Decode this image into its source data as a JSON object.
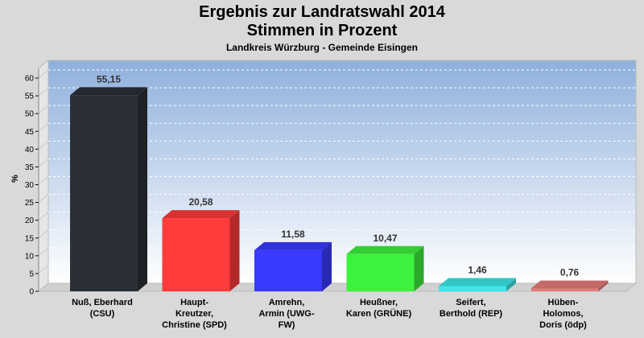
{
  "chart_data": {
    "type": "bar",
    "title_line1": "Ergebnis zur Landratswahl 2014",
    "title_line2": "Stimmen in Prozent",
    "subtitle": "Landkreis Würzburg - Gemeinde Eisingen",
    "ylabel": "%",
    "ylim": [
      0,
      60
    ],
    "yticks": [
      "0",
      "5",
      "10",
      "15",
      "20",
      "25",
      "30",
      "35",
      "40",
      "45",
      "50",
      "55",
      "60"
    ],
    "grid": true,
    "categories": [
      [
        "Nuß, Eberhard",
        "(CSU)"
      ],
      [
        "Haupt-",
        "Kreutzer,",
        "Christine (SPD)"
      ],
      [
        "Amrehn,",
        "Armin (UWG-",
        "FW)"
      ],
      [
        "Heußner,",
        "Karen (GRÜNE)"
      ],
      [
        "Seifert,",
        "Berthold (REP)"
      ],
      [
        "Hüben-",
        "Holomos,",
        "Doris (ödp)"
      ]
    ],
    "values": [
      55.15,
      20.58,
      11.58,
      10.47,
      1.46,
      0.76
    ],
    "value_labels": [
      "55,15",
      "20,58",
      "11,58",
      "10,47",
      "1,46",
      "0,76"
    ],
    "colors": [
      "#2b2f36",
      "#ff3b3b",
      "#3a3aff",
      "#3df23d",
      "#3de8e8",
      "#e87a7a"
    ]
  }
}
